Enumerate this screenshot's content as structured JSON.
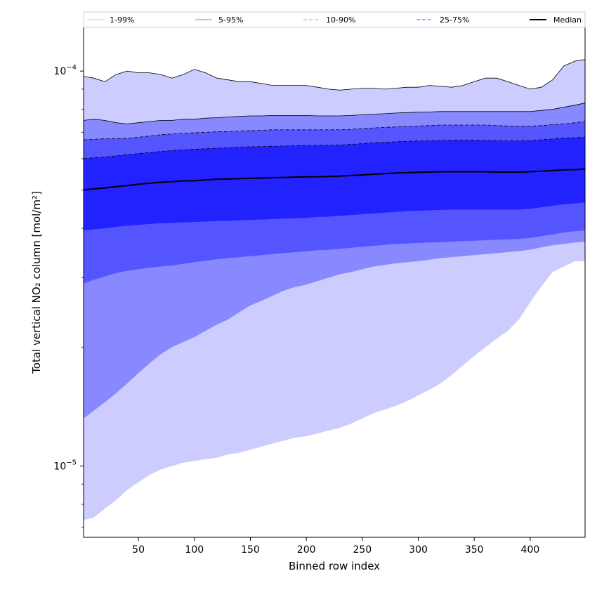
{
  "chart_data": {
    "type": "area",
    "xlabel": "Binned row index",
    "ylabel": "Total vertical NO₂ column [mol/m²]",
    "xlim": [
      1,
      449
    ],
    "ylim": [
      6.6e-06,
      0.000129
    ],
    "yscale": "log",
    "grid": false,
    "legend_position": "top",
    "x_ticks": [
      {
        "value": 50,
        "label": "50"
      },
      {
        "value": 100,
        "label": "100"
      },
      {
        "value": 150,
        "label": "150"
      },
      {
        "value": 200,
        "label": "200"
      },
      {
        "value": 250,
        "label": "250"
      },
      {
        "value": 300,
        "label": "300"
      },
      {
        "value": 350,
        "label": "350"
      },
      {
        "value": 400,
        "label": "400"
      }
    ],
    "y_major_ticks": [
      {
        "value": 1e-05,
        "base": "10",
        "exponent": "−5"
      },
      {
        "value": 0.0001,
        "base": "10",
        "exponent": "−4"
      }
    ],
    "x": [
      1,
      10,
      20,
      30,
      40,
      50,
      60,
      70,
      80,
      90,
      100,
      110,
      120,
      130,
      140,
      150,
      160,
      170,
      180,
      190,
      200,
      210,
      220,
      230,
      240,
      250,
      260,
      270,
      280,
      290,
      300,
      310,
      320,
      330,
      340,
      350,
      360,
      370,
      380,
      390,
      400,
      410,
      420,
      430,
      440,
      449
    ],
    "bands": [
      {
        "name": "1-99%",
        "fill": "#ccccff",
        "line_style": "solid",
        "line_color": "#cccccc",
        "upper": [
          9.7e-05,
          9.6e-05,
          9.4e-05,
          9.8e-05,
          0.0001,
          9.9e-05,
          9.9e-05,
          9.8e-05,
          9.6e-05,
          9.8e-05,
          0.000101,
          9.9e-05,
          9.6e-05,
          9.5e-05,
          9.4e-05,
          9.4e-05,
          9.3e-05,
          9.2e-05,
          9.2e-05,
          9.2e-05,
          9.2e-05,
          9.1e-05,
          9e-05,
          8.95e-05,
          9e-05,
          9.05e-05,
          9.05e-05,
          9e-05,
          9.05e-05,
          9.1e-05,
          9.1e-05,
          9.2e-05,
          9.15e-05,
          9.1e-05,
          9.2e-05,
          9.4e-05,
          9.6e-05,
          9.6e-05,
          9.4e-05,
          9.2e-05,
          9e-05,
          9.1e-05,
          9.5e-05,
          0.000103,
          0.000106,
          0.000107
        ],
        "lower": [
          7.3e-06,
          7.4e-06,
          7.8e-06,
          8.2e-06,
          8.7e-06,
          9.1e-06,
          9.5e-06,
          9.8e-06,
          1e-05,
          1.02e-05,
          1.03e-05,
          1.04e-05,
          1.05e-05,
          1.07e-05,
          1.08e-05,
          1.1e-05,
          1.12e-05,
          1.14e-05,
          1.16e-05,
          1.18e-05,
          1.19e-05,
          1.21e-05,
          1.23e-05,
          1.25e-05,
          1.28e-05,
          1.32e-05,
          1.36e-05,
          1.39e-05,
          1.42e-05,
          1.46e-05,
          1.51e-05,
          1.56e-05,
          1.62e-05,
          1.7e-05,
          1.8e-05,
          1.9e-05,
          2e-05,
          2.1e-05,
          2.2e-05,
          2.35e-05,
          2.6e-05,
          2.85e-05,
          3.1e-05,
          3.2e-05,
          3.3e-05,
          3.3e-05
        ]
      },
      {
        "name": "5-95%",
        "fill": "#8888ff",
        "line_style": "solid",
        "line_color": "#888888",
        "upper": [
          7.5e-05,
          7.55e-05,
          7.5e-05,
          7.4e-05,
          7.35e-05,
          7.4e-05,
          7.45e-05,
          7.5e-05,
          7.5e-05,
          7.55e-05,
          7.55e-05,
          7.6e-05,
          7.62e-05,
          7.65e-05,
          7.68e-05,
          7.7e-05,
          7.7e-05,
          7.72e-05,
          7.72e-05,
          7.72e-05,
          7.72e-05,
          7.7e-05,
          7.7e-05,
          7.7e-05,
          7.72e-05,
          7.75e-05,
          7.78e-05,
          7.8e-05,
          7.83e-05,
          7.85e-05,
          7.87e-05,
          7.88e-05,
          7.9e-05,
          7.9e-05,
          7.9e-05,
          7.9e-05,
          7.9e-05,
          7.9e-05,
          7.9e-05,
          7.9e-05,
          7.9e-05,
          7.95e-05,
          8e-05,
          8.1e-05,
          8.2e-05,
          8.3e-05
        ],
        "lower": [
          1.32e-05,
          1.38e-05,
          1.45e-05,
          1.53e-05,
          1.62e-05,
          1.72e-05,
          1.82e-05,
          1.92e-05,
          2e-05,
          2.06e-05,
          2.12e-05,
          2.2e-05,
          2.28e-05,
          2.35e-05,
          2.45e-05,
          2.55e-05,
          2.62e-05,
          2.7e-05,
          2.78e-05,
          2.84e-05,
          2.88e-05,
          2.94e-05,
          3e-05,
          3.06e-05,
          3.1e-05,
          3.15e-05,
          3.2e-05,
          3.23e-05,
          3.26e-05,
          3.28e-05,
          3.3e-05,
          3.33e-05,
          3.36e-05,
          3.38e-05,
          3.4e-05,
          3.42e-05,
          3.44e-05,
          3.46e-05,
          3.48e-05,
          3.5e-05,
          3.53e-05,
          3.58e-05,
          3.62e-05,
          3.65e-05,
          3.68e-05,
          3.7e-05
        ]
      },
      {
        "name": "10-90%",
        "fill": "#5555ff",
        "line_style": "dashed",
        "line_color": "#9999ff",
        "upper": [
          6.7e-05,
          6.72e-05,
          6.74e-05,
          6.75e-05,
          6.76e-05,
          6.8e-05,
          6.85e-05,
          6.9e-05,
          6.93e-05,
          6.96e-05,
          6.98e-05,
          7e-05,
          7.02e-05,
          7.03e-05,
          7.05e-05,
          7.07e-05,
          7.08e-05,
          7.1e-05,
          7.1e-05,
          7.1e-05,
          7.1e-05,
          7.1e-05,
          7.1e-05,
          7.1e-05,
          7.12e-05,
          7.15e-05,
          7.18e-05,
          7.2e-05,
          7.22e-05,
          7.24e-05,
          7.26e-05,
          7.28e-05,
          7.3e-05,
          7.3e-05,
          7.3e-05,
          7.3e-05,
          7.3e-05,
          7.28e-05,
          7.26e-05,
          7.25e-05,
          7.25e-05,
          7.28e-05,
          7.32e-05,
          7.35e-05,
          7.4e-05,
          7.45e-05
        ],
        "lower": [
          2.9e-05,
          2.96e-05,
          3.02e-05,
          3.08e-05,
          3.12e-05,
          3.15e-05,
          3.18e-05,
          3.2e-05,
          3.22e-05,
          3.25e-05,
          3.28e-05,
          3.31e-05,
          3.34e-05,
          3.36e-05,
          3.38e-05,
          3.4e-05,
          3.42e-05,
          3.44e-05,
          3.46e-05,
          3.48e-05,
          3.5e-05,
          3.52e-05,
          3.53e-05,
          3.55e-05,
          3.57e-05,
          3.59e-05,
          3.61e-05,
          3.63e-05,
          3.65e-05,
          3.66e-05,
          3.67e-05,
          3.68e-05,
          3.69e-05,
          3.7e-05,
          3.71e-05,
          3.72e-05,
          3.73e-05,
          3.74e-05,
          3.75e-05,
          3.76e-05,
          3.78e-05,
          3.82e-05,
          3.86e-05,
          3.9e-05,
          3.93e-05,
          3.95e-05
        ]
      },
      {
        "name": "25-75%",
        "fill": "#2222ff",
        "line_style": "dashed",
        "line_color": "#5555ff",
        "upper": [
          6e-05,
          6.03e-05,
          6.06e-05,
          6.1e-05,
          6.14e-05,
          6.18e-05,
          6.22e-05,
          6.26e-05,
          6.29e-05,
          6.32e-05,
          6.34e-05,
          6.36e-05,
          6.38e-05,
          6.4e-05,
          6.42e-05,
          6.43e-05,
          6.44e-05,
          6.45e-05,
          6.46e-05,
          6.47e-05,
          6.48e-05,
          6.48e-05,
          6.49e-05,
          6.5e-05,
          6.52e-05,
          6.55e-05,
          6.58e-05,
          6.6e-05,
          6.62e-05,
          6.64e-05,
          6.65e-05,
          6.66e-05,
          6.67e-05,
          6.68e-05,
          6.68e-05,
          6.68e-05,
          6.68e-05,
          6.67e-05,
          6.66e-05,
          6.66e-05,
          6.67e-05,
          6.7e-05,
          6.73e-05,
          6.76e-05,
          6.78e-05,
          6.8e-05
        ],
        "lower": [
          3.95e-05,
          3.97e-05,
          4e-05,
          4.03e-05,
          4.06e-05,
          4.08e-05,
          4.1e-05,
          4.12e-05,
          4.13e-05,
          4.14e-05,
          4.15e-05,
          4.16e-05,
          4.17e-05,
          4.18e-05,
          4.19e-05,
          4.2e-05,
          4.21e-05,
          4.22e-05,
          4.23e-05,
          4.24e-05,
          4.25e-05,
          4.27e-05,
          4.28e-05,
          4.3e-05,
          4.32e-05,
          4.34e-05,
          4.36e-05,
          4.38e-05,
          4.4e-05,
          4.42e-05,
          4.43e-05,
          4.44e-05,
          4.45e-05,
          4.46e-05,
          4.46e-05,
          4.46e-05,
          4.46e-05,
          4.46e-05,
          4.46e-05,
          4.46e-05,
          4.48e-05,
          4.52e-05,
          4.56e-05,
          4.6e-05,
          4.62e-05,
          4.65e-05
        ]
      }
    ],
    "median": {
      "name": "Median",
      "color": "#000000",
      "values": [
        5e-05,
        5.03e-05,
        5.06e-05,
        5.1e-05,
        5.13e-05,
        5.17e-05,
        5.2e-05,
        5.23e-05,
        5.25e-05,
        5.27e-05,
        5.28e-05,
        5.3e-05,
        5.32e-05,
        5.33e-05,
        5.34e-05,
        5.35e-05,
        5.36e-05,
        5.37e-05,
        5.38e-05,
        5.39e-05,
        5.4e-05,
        5.4e-05,
        5.41e-05,
        5.42e-05,
        5.44e-05,
        5.46e-05,
        5.48e-05,
        5.5e-05,
        5.52e-05,
        5.53e-05,
        5.54e-05,
        5.55e-05,
        5.56e-05,
        5.56e-05,
        5.56e-05,
        5.56e-05,
        5.56e-05,
        5.55e-05,
        5.55e-05,
        5.55e-05,
        5.56e-05,
        5.58e-05,
        5.6e-05,
        5.62e-05,
        5.63e-05,
        5.65e-05
      ]
    },
    "legend": [
      {
        "label": "1-99%",
        "color": "#cccccc",
        "style": "solid"
      },
      {
        "label": "5-95%",
        "color": "#888888",
        "style": "solid"
      },
      {
        "label": "10-90%",
        "color": "#9999ff",
        "style": "dashed"
      },
      {
        "label": "25-75%",
        "color": "#5555ff",
        "style": "dashed"
      },
      {
        "label": "Median",
        "color": "#000000",
        "style": "solid"
      }
    ]
  }
}
